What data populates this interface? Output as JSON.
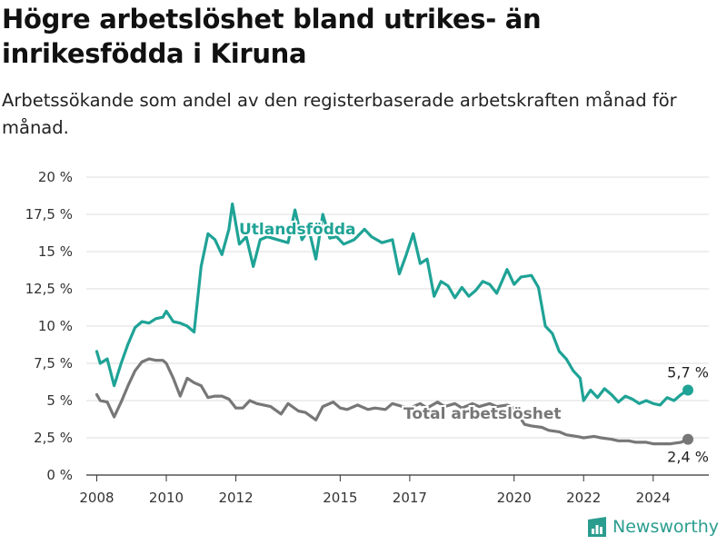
{
  "title": "Högre arbetslöshet bland utrikes- än inrikesfödda i Kiruna",
  "subtitle": "Arbetssökande som andel av den registerbaserade arbetskraften månad för månad.",
  "brand": {
    "name": "Newsworthy",
    "color": "#2a9d8f"
  },
  "chart_data": {
    "type": "line",
    "ylim": [
      0,
      20
    ],
    "xlim": [
      2007.7,
      2025.6
    ],
    "y_ticks": [
      0,
      2.5,
      5,
      7.5,
      10,
      12.5,
      15,
      17.5,
      20
    ],
    "y_tick_labels": [
      "0 %",
      "2,5 %",
      "5 %",
      "7,5 %",
      "10 %",
      "12,5 %",
      "15 %",
      "17,5 %",
      "20 %"
    ],
    "x_ticks": [
      2008,
      2010,
      2012,
      2015,
      2017,
      2020,
      2022,
      2024
    ],
    "x_tick_labels": [
      "2008",
      "2010",
      "2012",
      "2015",
      "2017",
      "2020",
      "2022",
      "2024"
    ],
    "grid": true,
    "series": [
      {
        "name": "Utlandsfödda",
        "color": "#1fa396",
        "end_label": "5,7 %",
        "x": [
          2008.0,
          2008.1,
          2008.3,
          2008.5,
          2008.7,
          2008.9,
          2009.1,
          2009.3,
          2009.5,
          2009.7,
          2009.9,
          2010.0,
          2010.2,
          2010.4,
          2010.6,
          2010.8,
          2011.0,
          2011.2,
          2011.4,
          2011.6,
          2011.8,
          2011.9,
          2012.1,
          2012.3,
          2012.5,
          2012.7,
          2012.9,
          2013.2,
          2013.5,
          2013.7,
          2013.9,
          2014.1,
          2014.3,
          2014.5,
          2014.7,
          2014.9,
          2015.1,
          2015.4,
          2015.7,
          2015.9,
          2016.2,
          2016.5,
          2016.7,
          2016.9,
          2017.1,
          2017.3,
          2017.5,
          2017.7,
          2017.9,
          2018.1,
          2018.3,
          2018.5,
          2018.7,
          2018.9,
          2019.1,
          2019.3,
          2019.5,
          2019.8,
          2020.0,
          2020.2,
          2020.5,
          2020.7,
          2020.9,
          2021.1,
          2021.3,
          2021.5,
          2021.7,
          2021.9,
          2022.0,
          2022.2,
          2022.4,
          2022.6,
          2022.8,
          2023.0,
          2023.2,
          2023.4,
          2023.6,
          2023.8,
          2024.0,
          2024.2,
          2024.4,
          2024.6,
          2024.8,
          2025.0
        ],
        "y": [
          8.3,
          7.5,
          7.8,
          6.0,
          7.5,
          8.8,
          9.9,
          10.3,
          10.2,
          10.5,
          10.6,
          11.0,
          10.3,
          10.2,
          10.0,
          9.6,
          14.0,
          16.2,
          15.8,
          14.8,
          16.5,
          18.2,
          15.5,
          16.0,
          14.0,
          15.8,
          16.0,
          15.8,
          15.6,
          17.8,
          15.8,
          16.5,
          14.5,
          17.5,
          15.9,
          16.0,
          15.5,
          15.8,
          16.5,
          16.0,
          15.6,
          15.8,
          13.5,
          14.8,
          16.2,
          14.2,
          14.5,
          12.0,
          13.0,
          12.7,
          11.9,
          12.6,
          12.0,
          12.4,
          13.0,
          12.8,
          12.2,
          13.8,
          12.8,
          13.3,
          13.4,
          12.6,
          10.0,
          9.5,
          8.3,
          7.8,
          7.0,
          6.5,
          5.0,
          5.7,
          5.2,
          5.8,
          5.4,
          4.9,
          5.3,
          5.1,
          4.8,
          5.0,
          4.8,
          4.7,
          5.2,
          5.0,
          5.4,
          5.7
        ]
      },
      {
        "name": "Total arbetslöshet",
        "color": "#777777",
        "end_label": "2,4 %",
        "x": [
          2008.0,
          2008.1,
          2008.3,
          2008.5,
          2008.7,
          2008.9,
          2009.1,
          2009.3,
          2009.5,
          2009.7,
          2009.9,
          2010.0,
          2010.2,
          2010.4,
          2010.6,
          2010.8,
          2011.0,
          2011.2,
          2011.4,
          2011.6,
          2011.8,
          2012.0,
          2012.2,
          2012.4,
          2012.6,
          2012.8,
          2013.0,
          2013.3,
          2013.5,
          2013.8,
          2014.0,
          2014.3,
          2014.5,
          2014.8,
          2015.0,
          2015.2,
          2015.5,
          2015.8,
          2016.0,
          2016.3,
          2016.5,
          2016.8,
          2017.0,
          2017.3,
          2017.5,
          2017.8,
          2018.0,
          2018.3,
          2018.5,
          2018.8,
          2019.0,
          2019.3,
          2019.5,
          2019.8,
          2020.0,
          2020.3,
          2020.5,
          2020.8,
          2021.0,
          2021.3,
          2021.5,
          2021.8,
          2022.0,
          2022.3,
          2022.5,
          2022.8,
          2023.0,
          2023.3,
          2023.5,
          2023.8,
          2024.0,
          2024.3,
          2024.5,
          2024.8,
          2025.0
        ],
        "y": [
          5.4,
          5.0,
          4.9,
          3.9,
          4.9,
          6.0,
          7.0,
          7.6,
          7.8,
          7.7,
          7.7,
          7.5,
          6.5,
          5.3,
          6.5,
          6.2,
          6.0,
          5.2,
          5.3,
          5.3,
          5.1,
          4.5,
          4.5,
          5.0,
          4.8,
          4.7,
          4.6,
          4.1,
          4.8,
          4.3,
          4.2,
          3.7,
          4.6,
          4.9,
          4.5,
          4.4,
          4.7,
          4.4,
          4.5,
          4.4,
          4.8,
          4.6,
          4.5,
          4.8,
          4.5,
          4.9,
          4.6,
          4.8,
          4.5,
          4.8,
          4.6,
          4.8,
          4.6,
          4.7,
          4.5,
          3.4,
          3.3,
          3.2,
          3.0,
          2.9,
          2.7,
          2.6,
          2.5,
          2.6,
          2.5,
          2.4,
          2.3,
          2.3,
          2.2,
          2.2,
          2.1,
          2.1,
          2.1,
          2.2,
          2.4
        ]
      }
    ]
  }
}
